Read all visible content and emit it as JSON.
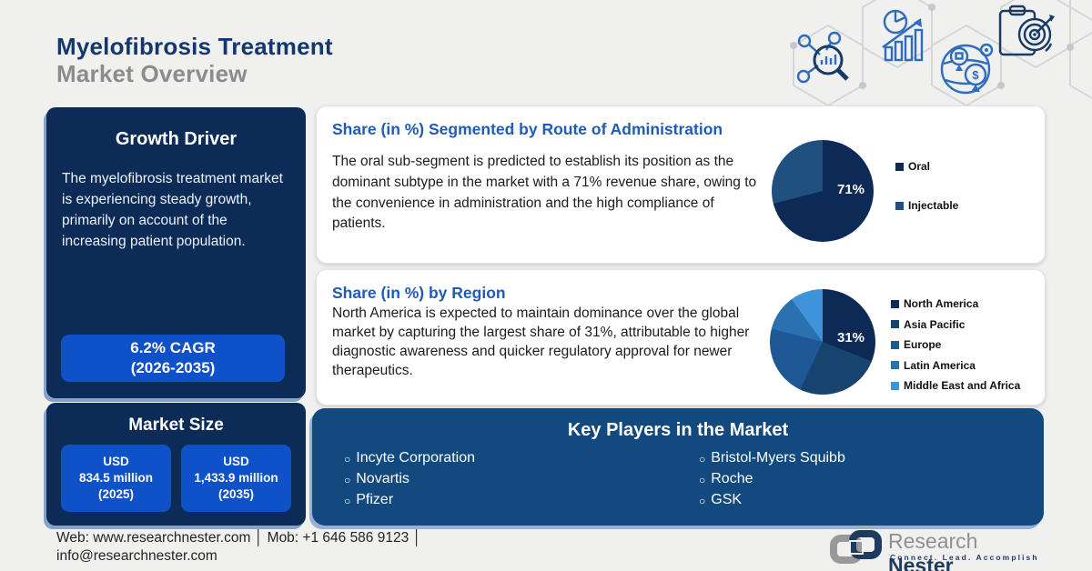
{
  "header": {
    "title_line1": "Myelofibrosis Treatment",
    "title_line2": "Market Overview"
  },
  "growth_driver": {
    "title": "Growth Driver",
    "text": "The myelofibrosis treatment market is experiencing steady growth, primarily on account of the increasing patient population.",
    "cagr_line1": "6.2% CAGR",
    "cagr_line2": "(2026-2035)"
  },
  "route_panel": {
    "title": "Share (in %) Segmented by Route of Administration",
    "text": "The oral sub-segment is predicted to establish its position as the dominant subtype in the market with a 71% revenue share, owing to the convenience in administration and the high compliance of patients."
  },
  "region_panel": {
    "title": "Share (in %) by Region",
    "text": "North America is expected to maintain dominance over the global market by capturing the largest share of 31%, attributable to higher diagnostic awareness and quicker regulatory approval for newer therapeutics."
  },
  "market_size": {
    "title": "Market Size",
    "boxes": [
      {
        "line1": "USD",
        "line2": "834.5 million",
        "line3": "(2025)"
      },
      {
        "line1": "USD",
        "line2": "1,433.9 million",
        "line3": "(2035)"
      }
    ]
  },
  "key_players": {
    "title": "Key Players in the Market",
    "column1": [
      "Incyte Corporation",
      "Novartis",
      "Pfizer"
    ],
    "column2": [
      "Bristol-Myers Squibb",
      "Roche",
      "GSK"
    ]
  },
  "footer": {
    "contact_line1": "Web: www.researchnester.com │ Mob: +1 646 586 9123 │",
    "contact_line2": "info@researchnester.com",
    "logo_word1": "Research ",
    "logo_word2": "Nester",
    "logo_tagline": "Connect. Lead. Accomplish"
  },
  "decorative_icons": [
    "network-analysis-icon",
    "growth-chart-icon",
    "global-market-icon",
    "target-clipboard-icon"
  ],
  "colors": {
    "background": "#f0f0ef",
    "panel_navy": "#0c2b57",
    "players_navy": "#124a80",
    "button_blue": "#0e51c8",
    "heading_blue": "#1e5cb8",
    "title_navy": "#14376e",
    "title_gray": "#8c8c8c",
    "icon_blue": "#2e6cbe"
  },
  "chart_data": [
    {
      "type": "pie",
      "title": "Share (in %) Segmented by Route of Administration",
      "labels": [
        "Oral",
        "Injectable"
      ],
      "values": [
        71,
        29
      ],
      "colors": [
        "#0d2a56",
        "#20507f"
      ],
      "annotation": "71%",
      "legend_position": "right",
      "start_angle_deg": 0
    },
    {
      "type": "pie",
      "title": "Share (in %) by Region",
      "labels": [
        "North America",
        "Asia Pacific",
        "Europe",
        "Latin America",
        "Middle East and Africa"
      ],
      "values": [
        31,
        26,
        22,
        11,
        10
      ],
      "colors": [
        "#0d2a56",
        "#17436f",
        "#1d5796",
        "#2a71b0",
        "#3f93d8"
      ],
      "annotation": "31%",
      "legend_position": "right",
      "start_angle_deg": 0
    }
  ]
}
